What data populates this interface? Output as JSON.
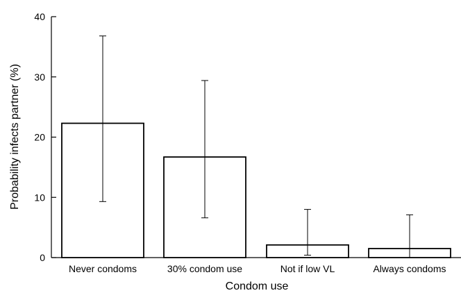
{
  "chart_data": {
    "type": "bar",
    "xlabel": "Condom use",
    "ylabel": "Probability infects partner (%)",
    "ylim": [
      0,
      40
    ],
    "yticks": [
      0,
      10,
      20,
      30,
      40
    ],
    "categories": [
      "Never condoms",
      "30% condom use",
      "Not if low VL",
      "Always condoms"
    ],
    "values": [
      22.3,
      16.7,
      2.1,
      1.5
    ],
    "error_low": [
      9.3,
      6.6,
      0.4,
      0.0
    ],
    "error_high": [
      36.8,
      29.4,
      8.0,
      7.1
    ],
    "grid": false,
    "legend": "none"
  }
}
